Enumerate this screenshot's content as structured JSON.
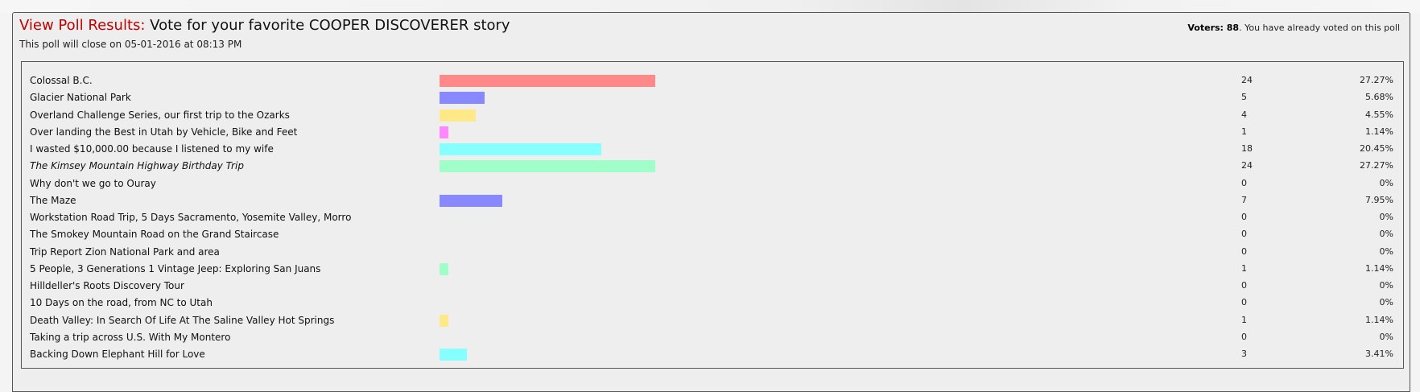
{
  "header": {
    "title_label": "View Poll Results:",
    "title_text": " Vote for your favorite COOPER DISCOVERER story",
    "close_text": "This poll will close on 05-01-2016 at 08:13 PM",
    "voters_label": "Voters: 88",
    "voters_note": ". You have already voted on this poll"
  },
  "colors": {
    "title_label": "#c00000",
    "panel_bg": "#eeeeee",
    "border": "#555555"
  },
  "options": [
    {
      "name": "Colossal B.C.",
      "votes": 24,
      "pct": "27.27%",
      "color": "#ff8888"
    },
    {
      "name": "Glacier National Park",
      "votes": 5,
      "pct": "5.68%",
      "color": "#8888ff"
    },
    {
      "name": "Overland Challenge Series, our first trip to the Ozarks",
      "votes": 4,
      "pct": "4.55%",
      "color": "#ffe888"
    },
    {
      "name": "Over landing the Best in Utah by Vehicle, Bike and Feet",
      "votes": 1,
      "pct": "1.14%",
      "color": "#ff88ff"
    },
    {
      "name": "I wasted $10,000.00 because I listened to my wife",
      "votes": 18,
      "pct": "20.45%",
      "color": "#88ffff"
    },
    {
      "name": "The Kimsey Mountain Highway Birthday Trip",
      "votes": 24,
      "pct": "27.27%",
      "color": "#a0ffc8",
      "italic": true
    },
    {
      "name": "Why don't we go to Ouray",
      "votes": 0,
      "pct": "0%",
      "color": "#ff8888"
    },
    {
      "name": "The Maze",
      "votes": 7,
      "pct": "7.95%",
      "color": "#8888ff"
    },
    {
      "name": "Workstation Road Trip, 5 Days Sacramento, Yosemite Valley, Morro",
      "votes": 0,
      "pct": "0%",
      "color": "#ffe888"
    },
    {
      "name": "The Smokey Mountain Road on the Grand Staircase",
      "votes": 0,
      "pct": "0%",
      "color": "#ff88ff"
    },
    {
      "name": "Trip Report Zion National Park and area",
      "votes": 0,
      "pct": "0%",
      "color": "#88ffff"
    },
    {
      "name": "5 People, 3 Generations 1 Vintage Jeep: Exploring San Juans",
      "votes": 1,
      "pct": "1.14%",
      "color": "#a0ffc8"
    },
    {
      "name": "Hilldeller's Roots Discovery Tour",
      "votes": 0,
      "pct": "0%",
      "color": "#ff8888"
    },
    {
      "name": "10 Days on the road, from NC to Utah",
      "votes": 0,
      "pct": "0%",
      "color": "#8888ff"
    },
    {
      "name": "Death Valley: In Search Of Life At The Saline Valley Hot Springs",
      "votes": 1,
      "pct": "1.14%",
      "color": "#ffe888"
    },
    {
      "name": "Taking a trip across U.S. With My Montero",
      "votes": 0,
      "pct": "0%",
      "color": "#ff88ff"
    },
    {
      "name": "Backing Down Elephant Hill for Love",
      "votes": 3,
      "pct": "3.41%",
      "color": "#88ffff"
    }
  ]
}
